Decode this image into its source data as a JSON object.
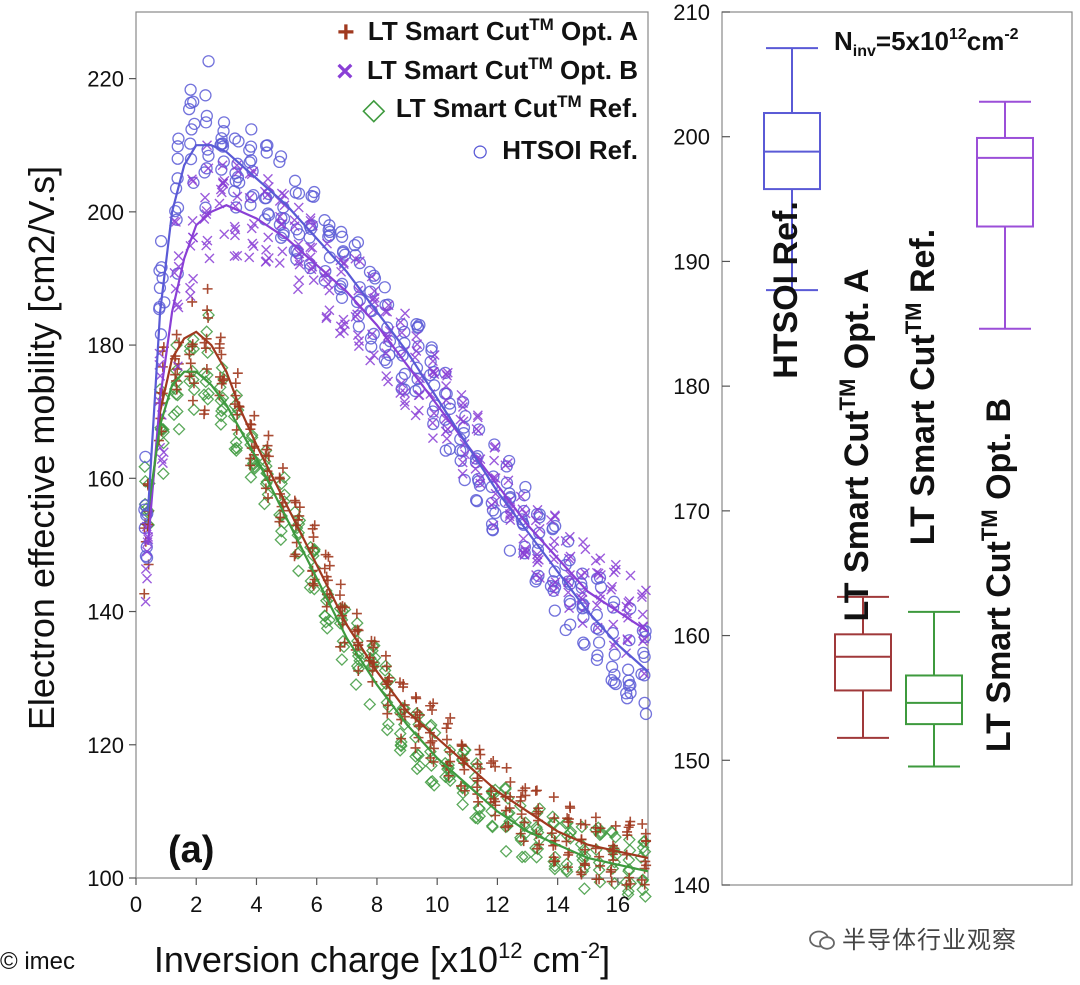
{
  "left_chart": {
    "panel_label": "(a)",
    "xlabel": {
      "main": "Inversion charge [x10",
      "sup1": "12",
      "mid": " cm",
      "sup2": "-2",
      "end": "]"
    },
    "ylabel": "Electron effective mobility [cm2/V.s]",
    "xticks": [
      "0",
      "2",
      "4",
      "6",
      "8",
      "10",
      "12",
      "14",
      "16"
    ],
    "yticks": [
      "100",
      "120",
      "140",
      "160",
      "180",
      "200",
      "220"
    ],
    "legend": [
      {
        "marker": "+",
        "text": "LT Smart Cut",
        "tm": "TM",
        "suffix": " Opt. A",
        "color": "#a0391f"
      },
      {
        "marker": "×",
        "text": "LT Smart Cut",
        "tm": "TM",
        "suffix": " Opt. B",
        "color": "#8a3fd6"
      },
      {
        "marker": "◇",
        "text": "LT Smart Cut",
        "tm": "TM",
        "suffix": " Ref.",
        "color": "#3e9a3e"
      },
      {
        "marker": "○",
        "text": "HTSOI Ref.",
        "tm": "",
        "suffix": "",
        "color": "#5a5ad6"
      }
    ]
  },
  "right_chart": {
    "annotation": {
      "n": "N",
      "sub": "inv",
      "eq": "=5x10",
      "sup": "12",
      "unit": "cm",
      "sup2": "-2"
    },
    "yticks": [
      "140",
      "150",
      "160",
      "170",
      "180",
      "190",
      "200",
      "210"
    ],
    "box_labels": [
      {
        "text": "HTSOI Ref.",
        "tm": "",
        "suffix": ""
      },
      {
        "text": "LT Smart Cut",
        "tm": "TM",
        "suffix": " Opt. A"
      },
      {
        "text": "LT Smart Cut",
        "tm": "TM",
        "suffix": " Ref."
      },
      {
        "text": "LT Smart Cut",
        "tm": "TM",
        "suffix": " Opt. B"
      }
    ]
  },
  "chart_data": [
    {
      "type": "scatter",
      "xlim": [
        0,
        17
      ],
      "ylim": [
        100,
        230
      ],
      "grid": false,
      "legend_position": "top-right",
      "series": [
        {
          "name": "LT Smart CutTM Opt. A",
          "color": "#a0391f",
          "marker": "plus",
          "fit_x": [
            0.4,
            0.8,
            1.2,
            1.6,
            2.0,
            2.5,
            3.0,
            3.5,
            4.0,
            5.0,
            6.0,
            7.0,
            8.0,
            9.0,
            10.0,
            11.0,
            12.0,
            13.0,
            14.0,
            15.0,
            16.0,
            17.0
          ],
          "fit_y": [
            152,
            170,
            178,
            181,
            182,
            180,
            176,
            170,
            165,
            156,
            147,
            138,
            131,
            125,
            121,
            117,
            113,
            110,
            107,
            105,
            104,
            103
          ]
        },
        {
          "name": "LT Smart CutTM Opt. B",
          "color": "#8a3fd6",
          "marker": "x",
          "fit_x": [
            0.4,
            0.8,
            1.2,
            1.6,
            2.0,
            2.5,
            3.0,
            3.5,
            4.0,
            5.0,
            6.0,
            7.0,
            8.0,
            9.0,
            10.0,
            11.0,
            12.0,
            13.0,
            14.0,
            15.0,
            16.0,
            17.0
          ],
          "fit_y": [
            150,
            172,
            185,
            193,
            198,
            200,
            201,
            200,
            199,
            196,
            192,
            188,
            183,
            177,
            171,
            165,
            159,
            153,
            148,
            143,
            140,
            137
          ]
        },
        {
          "name": "LT Smart CutTM Ref.",
          "color": "#3e9a3e",
          "marker": "diamond",
          "fit_x": [
            0.4,
            0.8,
            1.2,
            1.6,
            2.0,
            2.5,
            3.0,
            3.5,
            4.0,
            5.0,
            6.0,
            7.0,
            8.0,
            9.0,
            10.0,
            11.0,
            12.0,
            13.0,
            14.0,
            15.0,
            16.0,
            17.0
          ],
          "fit_y": [
            155,
            168,
            174,
            176,
            176,
            174,
            171,
            167,
            163,
            154,
            145,
            136,
            129,
            123,
            118,
            114,
            110,
            107,
            105,
            103,
            102,
            101
          ]
        },
        {
          "name": "HTSOI Ref.",
          "color": "#5a5ad6",
          "marker": "circle",
          "fit_x": [
            0.4,
            0.8,
            1.2,
            1.6,
            2.0,
            2.5,
            3.0,
            3.5,
            4.0,
            5.0,
            6.0,
            7.0,
            8.0,
            9.0,
            10.0,
            11.0,
            12.0,
            13.0,
            14.0,
            15.0,
            16.0,
            17.0
          ],
          "fit_y": [
            155,
            185,
            200,
            207,
            210,
            210,
            209,
            207,
            205,
            201,
            196,
            191,
            185,
            179,
            172,
            165,
            158,
            152,
            146,
            140,
            135,
            131
          ]
        }
      ]
    },
    {
      "type": "box",
      "ylim": [
        140,
        210
      ],
      "series": [
        {
          "name": "HTSOI Ref.",
          "color": "#5a5ad6",
          "min": 187.7,
          "q1": 195.8,
          "median": 198.8,
          "q3": 201.9,
          "max": 207.1
        },
        {
          "name": "LT Smart CutTM Opt. A",
          "color": "#a0393a",
          "min": 151.8,
          "q1": 155.6,
          "median": 158.3,
          "q3": 160.1,
          "max": 163.1
        },
        {
          "name": "LT Smart CutTM Ref.",
          "color": "#3e9a3e",
          "min": 149.5,
          "q1": 152.9,
          "median": 154.6,
          "q3": 156.8,
          "max": 161.9
        },
        {
          "name": "LT Smart CutTM Opt. B",
          "color": "#9b4fd8",
          "min": 184.6,
          "q1": 192.8,
          "median": 198.3,
          "q3": 199.9,
          "max": 202.8
        }
      ]
    }
  ],
  "footer": {
    "credit": "© imec",
    "watermark": "半导体行业观察"
  }
}
